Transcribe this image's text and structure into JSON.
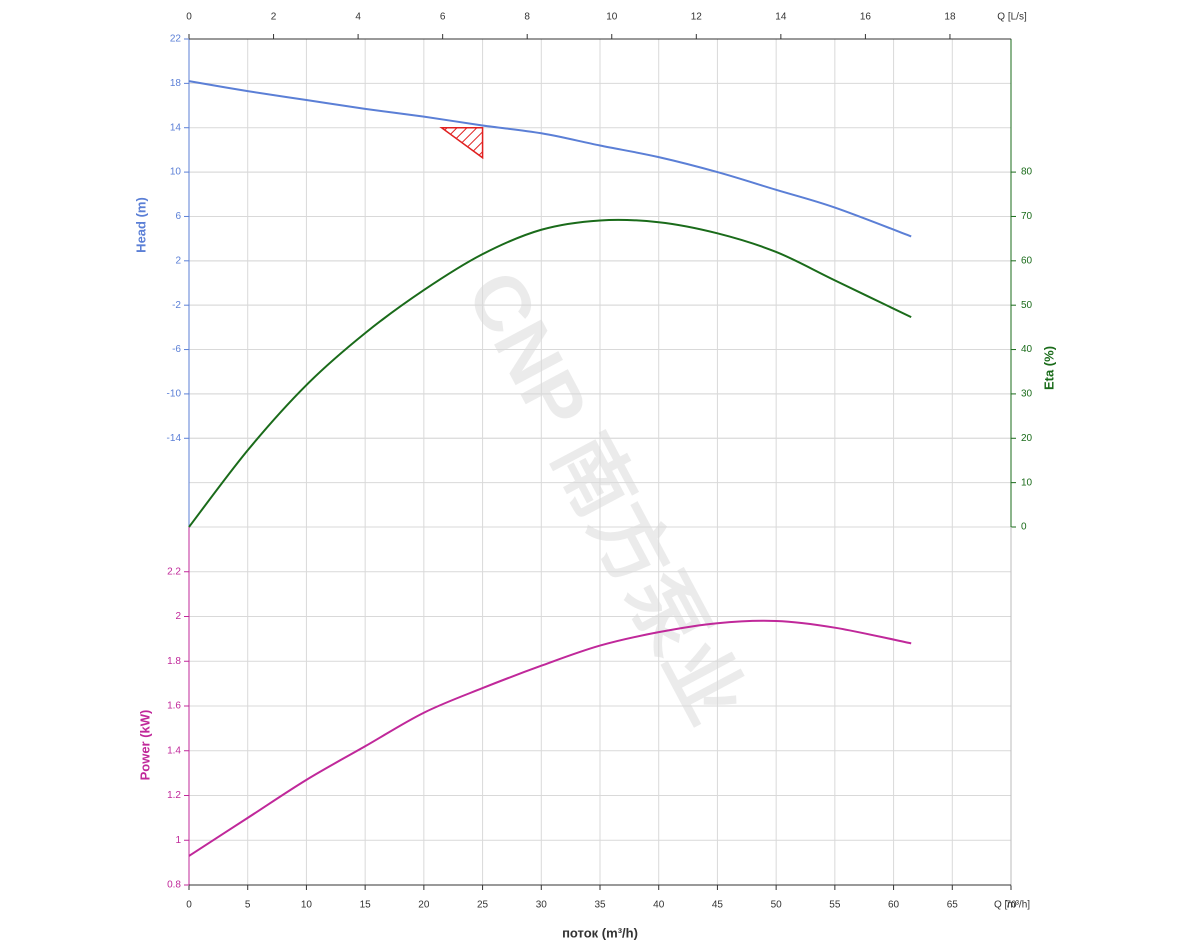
{
  "chart_data": {
    "type": "line",
    "watermark": "CNP 南方泵业",
    "xlabel": "поток (m³/h)",
    "xlabel_end": "Q [m³/h]",
    "x2label": "Q [L/s]",
    "ylabel": "Head (m)",
    "y2label": "Eta (%)",
    "y3label": "Power (kW)",
    "x": [
      0,
      5,
      10,
      15,
      20,
      25,
      30,
      35,
      40,
      45,
      50,
      55,
      61.5
    ],
    "xlim": [
      0,
      70
    ],
    "xticks": [
      0,
      5,
      10,
      15,
      20,
      25,
      30,
      35,
      40,
      45,
      50,
      55,
      60,
      65,
      70
    ],
    "x2lim": [
      0,
      19.444
    ],
    "x2ticks": [
      0,
      2,
      4,
      6,
      8,
      10,
      12,
      14,
      16,
      18
    ],
    "ylim": [
      -22,
      22
    ],
    "yticks": [
      22,
      18,
      14,
      10,
      6,
      2,
      -2,
      -6,
      -10,
      -14
    ],
    "y2lim": [
      0,
      110
    ],
    "y2ticks": [
      0,
      10,
      20,
      30,
      40,
      50,
      60,
      70,
      80
    ],
    "y3lim": [
      0.8,
      2.4
    ],
    "y3ticks": [
      0.8,
      1,
      1.2,
      1.4,
      1.6,
      1.8,
      2,
      2.2
    ],
    "grid": true,
    "series": [
      {
        "name": "Head",
        "axis": "y",
        "color": "#5b7fd6",
        "values": [
          18.2,
          17.3,
          16.5,
          15.7,
          15.0,
          14.2,
          13.5,
          12.4,
          11.35,
          10.0,
          8.4,
          6.8,
          4.2
        ]
      },
      {
        "name": "Eta",
        "axis": "y2",
        "color": "#1a6b1a",
        "values": [
          0,
          17.3,
          32,
          43.7,
          53.4,
          61.5,
          67,
          69.1,
          68.7,
          66.2,
          62,
          55.6,
          47.3
        ]
      },
      {
        "name": "Power",
        "axis": "y3",
        "color": "#c0289a",
        "values": [
          0.93,
          1.1,
          1.27,
          1.42,
          1.57,
          1.68,
          1.78,
          1.87,
          1.93,
          1.97,
          1.98,
          1.95,
          1.88
        ]
      }
    ],
    "duty_point": {
      "x": 25,
      "y": 14,
      "color": "#e02020"
    }
  }
}
